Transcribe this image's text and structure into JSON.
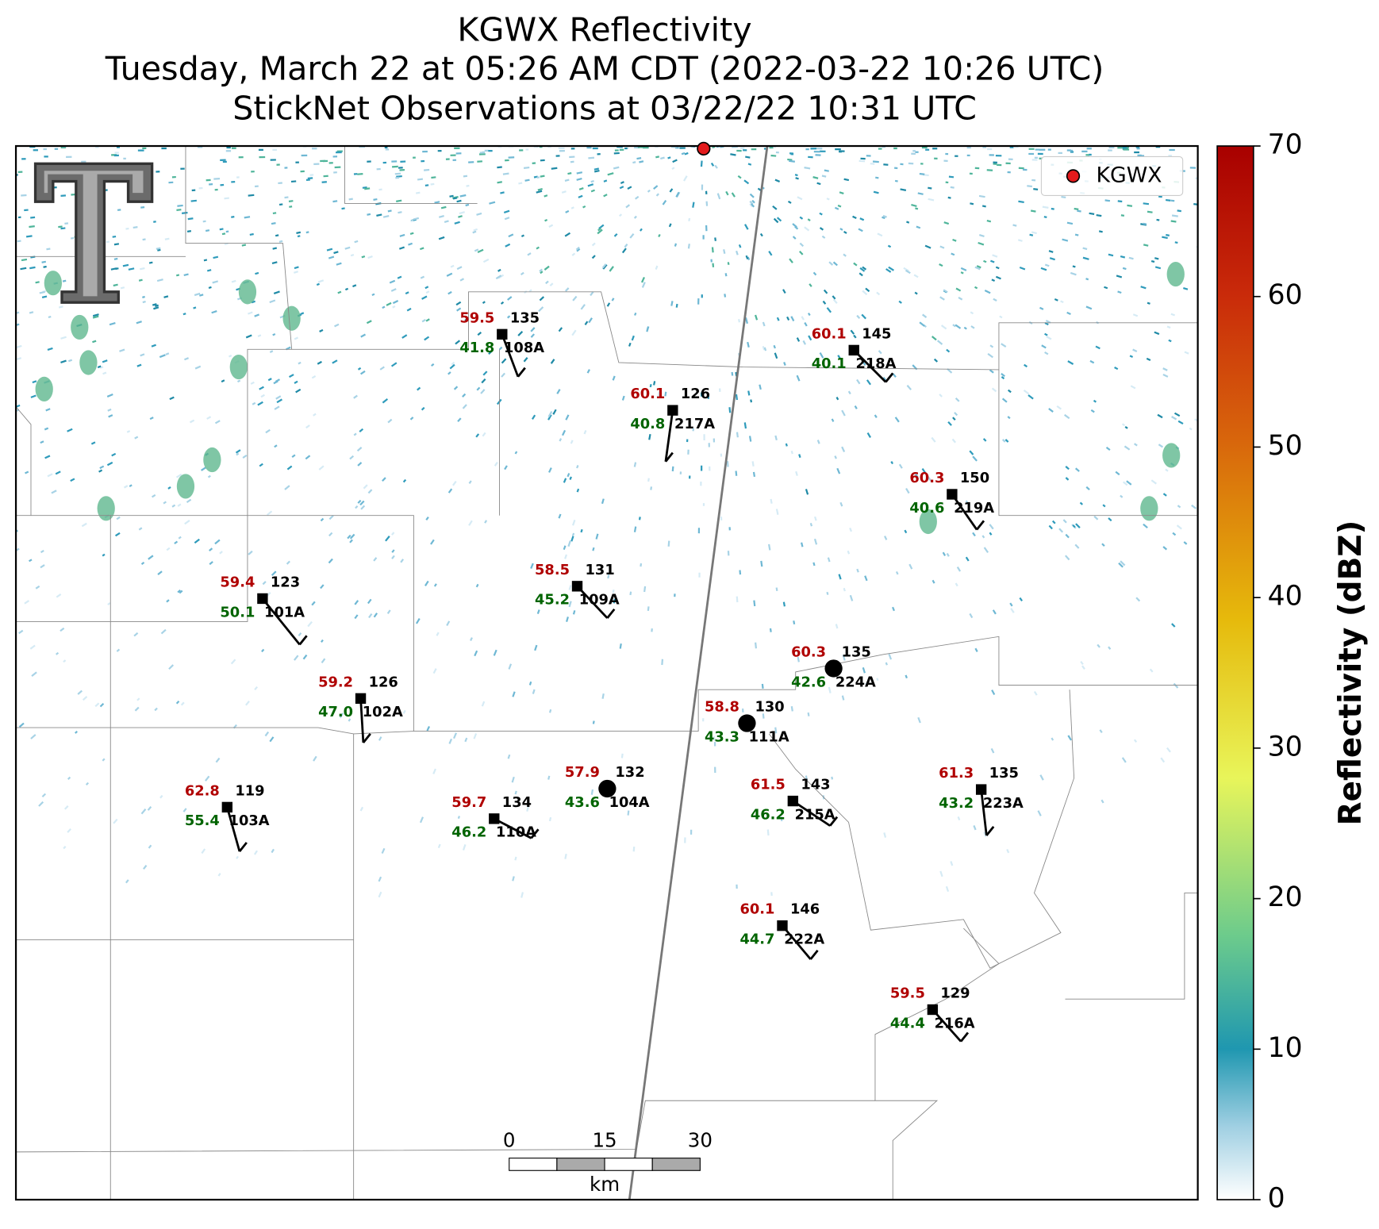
{
  "header": {
    "title": "KGWX Reflectivity",
    "subtitle": "Tuesday, March 22 at 05:26 AM CDT (2022-03-22 10:26 UTC)",
    "subtitle2": "StickNet Observations at 03/22/22 10:31 UTC"
  },
  "legend": {
    "label": "KGWX"
  },
  "stations": [
    {
      "id": "108A",
      "temperature": "59.5",
      "dewpoint": "41.8",
      "pressure": "135"
    },
    {
      "id": "218A",
      "temperature": "60.1",
      "dewpoint": "40.1",
      "pressure": "145"
    },
    {
      "id": "217A",
      "temperature": "60.1",
      "dewpoint": "40.8",
      "pressure": "126"
    },
    {
      "id": "219A",
      "temperature": "60.3",
      "dewpoint": "40.6",
      "pressure": "150"
    },
    {
      "id": "109A",
      "temperature": "58.5",
      "dewpoint": "45.2",
      "pressure": "131"
    },
    {
      "id": "101A",
      "temperature": "59.4",
      "dewpoint": "50.1",
      "pressure": "123"
    },
    {
      "id": "224A",
      "temperature": "60.3",
      "dewpoint": "42.6",
      "pressure": "135"
    },
    {
      "id": "102A",
      "temperature": "59.2",
      "dewpoint": "47.0",
      "pressure": "126"
    },
    {
      "id": "111A",
      "temperature": "58.8",
      "dewpoint": "43.3",
      "pressure": "130"
    },
    {
      "id": "103A",
      "temperature": "62.8",
      "dewpoint": "55.4",
      "pressure": "119"
    },
    {
      "id": "110A",
      "temperature": "59.7",
      "dewpoint": "46.2",
      "pressure": "134"
    },
    {
      "id": "104A",
      "temperature": "57.9",
      "dewpoint": "43.6",
      "pressure": "132"
    },
    {
      "id": "215A",
      "temperature": "61.5",
      "dewpoint": "46.2",
      "pressure": "143"
    },
    {
      "id": "223A",
      "temperature": "61.3",
      "dewpoint": "43.2",
      "pressure": "135"
    },
    {
      "id": "222A",
      "temperature": "60.1",
      "dewpoint": "44.7",
      "pressure": "146"
    },
    {
      "id": "216A",
      "temperature": "59.5",
      "dewpoint": "44.4",
      "pressure": "129"
    }
  ],
  "scale_bar": {
    "ticks": [
      "0",
      "15",
      "30"
    ],
    "unit": "km"
  },
  "colorbar": {
    "label": "Reflectivity (dBZ)",
    "lim": [
      0,
      70
    ],
    "ticks": [
      0,
      10,
      20,
      30,
      40,
      50,
      60,
      70
    ]
  }
}
